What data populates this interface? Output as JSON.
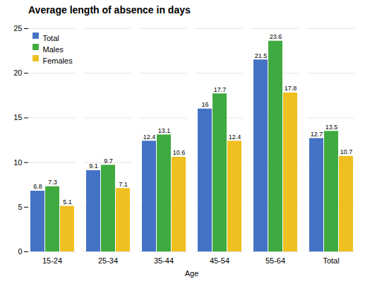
{
  "chart_data": {
    "type": "bar",
    "title": "Average length of absence in days",
    "xlabel": "Age",
    "categories": [
      "15-24",
      "25-34",
      "35-44",
      "45-54",
      "55-64",
      "Total"
    ],
    "series": [
      {
        "name": "Total",
        "color": "#4472c4",
        "values": [
          6.8,
          9.1,
          12.4,
          16.0,
          21.5,
          12.7
        ]
      },
      {
        "name": "Males",
        "color": "#3faa3f",
        "values": [
          7.3,
          9.7,
          13.1,
          17.7,
          23.6,
          13.5
        ]
      },
      {
        "name": "Females",
        "color": "#f0c020",
        "values": [
          5.1,
          7.1,
          10.6,
          12.4,
          17.8,
          10.7
        ]
      }
    ],
    "ylim": [
      0,
      25
    ],
    "yticks": [
      0,
      5,
      10,
      15,
      20,
      25
    ],
    "grid": true,
    "legend": "upper left",
    "data_labels": true
  }
}
